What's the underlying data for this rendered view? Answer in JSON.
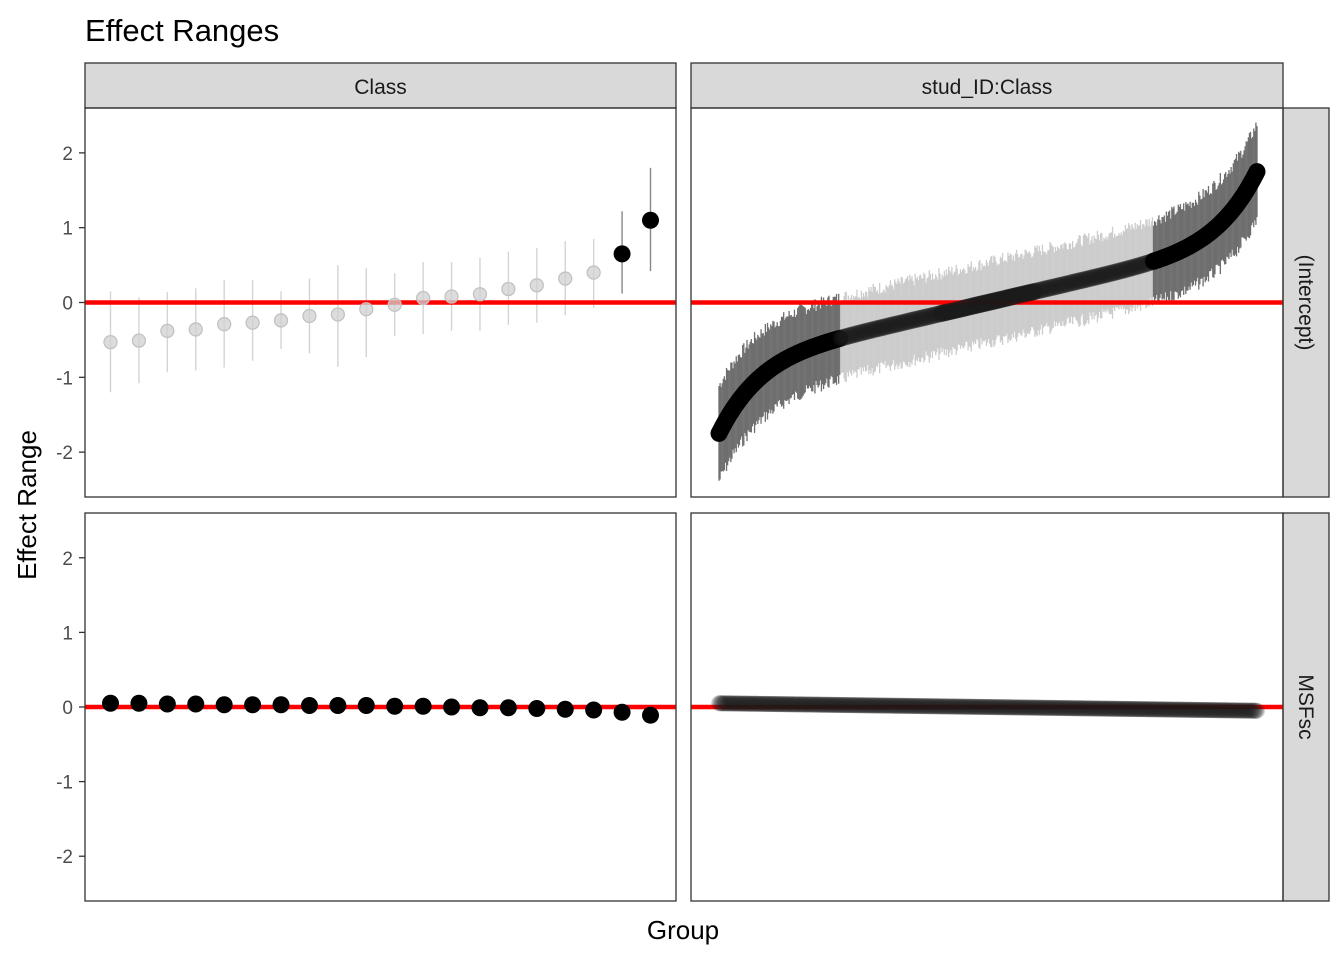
{
  "chart_data": {
    "type": "scatter",
    "title": "Effect Ranges",
    "xlabel": "Group",
    "ylabel": "Effect Range",
    "ylim": [
      -2.6,
      2.6
    ],
    "yticks": [
      -2,
      -1,
      0,
      1,
      2
    ],
    "reference_line": {
      "y": 0,
      "color": "#ff0000"
    },
    "grid": false,
    "colors": {
      "highlight": "#000000",
      "muted": "#bdbdbd",
      "interval": "#999999",
      "strip_fill": "#d9d9d9",
      "panel_border": "#333333"
    },
    "col_facets": [
      "Class",
      "stud_ID:Class"
    ],
    "row_facets": [
      "(Intercept)",
      "MSFsc"
    ],
    "panels": [
      {
        "col": "Class",
        "row": "(Intercept)",
        "kind": "points",
        "estimates": [
          -0.53,
          -0.51,
          -0.38,
          -0.36,
          -0.29,
          -0.27,
          -0.24,
          -0.18,
          -0.16,
          -0.09,
          -0.03,
          0.06,
          0.08,
          0.11,
          0.18,
          0.23,
          0.32,
          0.4,
          0.65,
          1.1
        ],
        "lower": [
          -1.2,
          -1.08,
          -0.93,
          -0.91,
          -0.87,
          -0.78,
          -0.62,
          -0.68,
          -0.86,
          -0.73,
          -0.45,
          -0.42,
          -0.38,
          -0.38,
          -0.3,
          -0.27,
          -0.17,
          -0.07,
          0.12,
          0.42
        ],
        "upper": [
          0.15,
          0.07,
          0.14,
          0.19,
          0.3,
          0.3,
          0.15,
          0.32,
          0.5,
          0.46,
          0.39,
          0.54,
          0.54,
          0.6,
          0.68,
          0.73,
          0.82,
          0.85,
          1.22,
          1.8
        ],
        "highlighted": [
          false,
          false,
          false,
          false,
          false,
          false,
          false,
          false,
          false,
          false,
          false,
          false,
          false,
          false,
          false,
          false,
          false,
          false,
          true,
          true
        ]
      },
      {
        "col": "stud_ID:Class",
        "row": "(Intercept)",
        "kind": "dense",
        "n_groups": 500,
        "estimate_curve": {
          "min": -1.75,
          "max": 1.75,
          "center_slope": 1.5,
          "tail_strength": 1.6
        },
        "interval_halfwidth_range": [
          0.45,
          0.62
        ],
        "highlight_below": -0.48,
        "highlight_above": 0.55
      },
      {
        "col": "Class",
        "row": "MSFsc",
        "kind": "points",
        "estimates": [
          0.05,
          0.05,
          0.04,
          0.04,
          0.03,
          0.03,
          0.03,
          0.02,
          0.02,
          0.02,
          0.01,
          0.01,
          0.0,
          -0.01,
          -0.01,
          -0.02,
          -0.03,
          -0.04,
          -0.07,
          -0.11
        ],
        "highlighted": [
          true,
          true,
          true,
          true,
          true,
          true,
          true,
          true,
          true,
          true,
          true,
          true,
          true,
          true,
          true,
          true,
          true,
          true,
          true,
          true
        ]
      },
      {
        "col": "stud_ID:Class",
        "row": "MSFsc",
        "kind": "dense",
        "n_groups": 500,
        "estimate_range": [
          0.05,
          -0.05
        ]
      }
    ]
  }
}
